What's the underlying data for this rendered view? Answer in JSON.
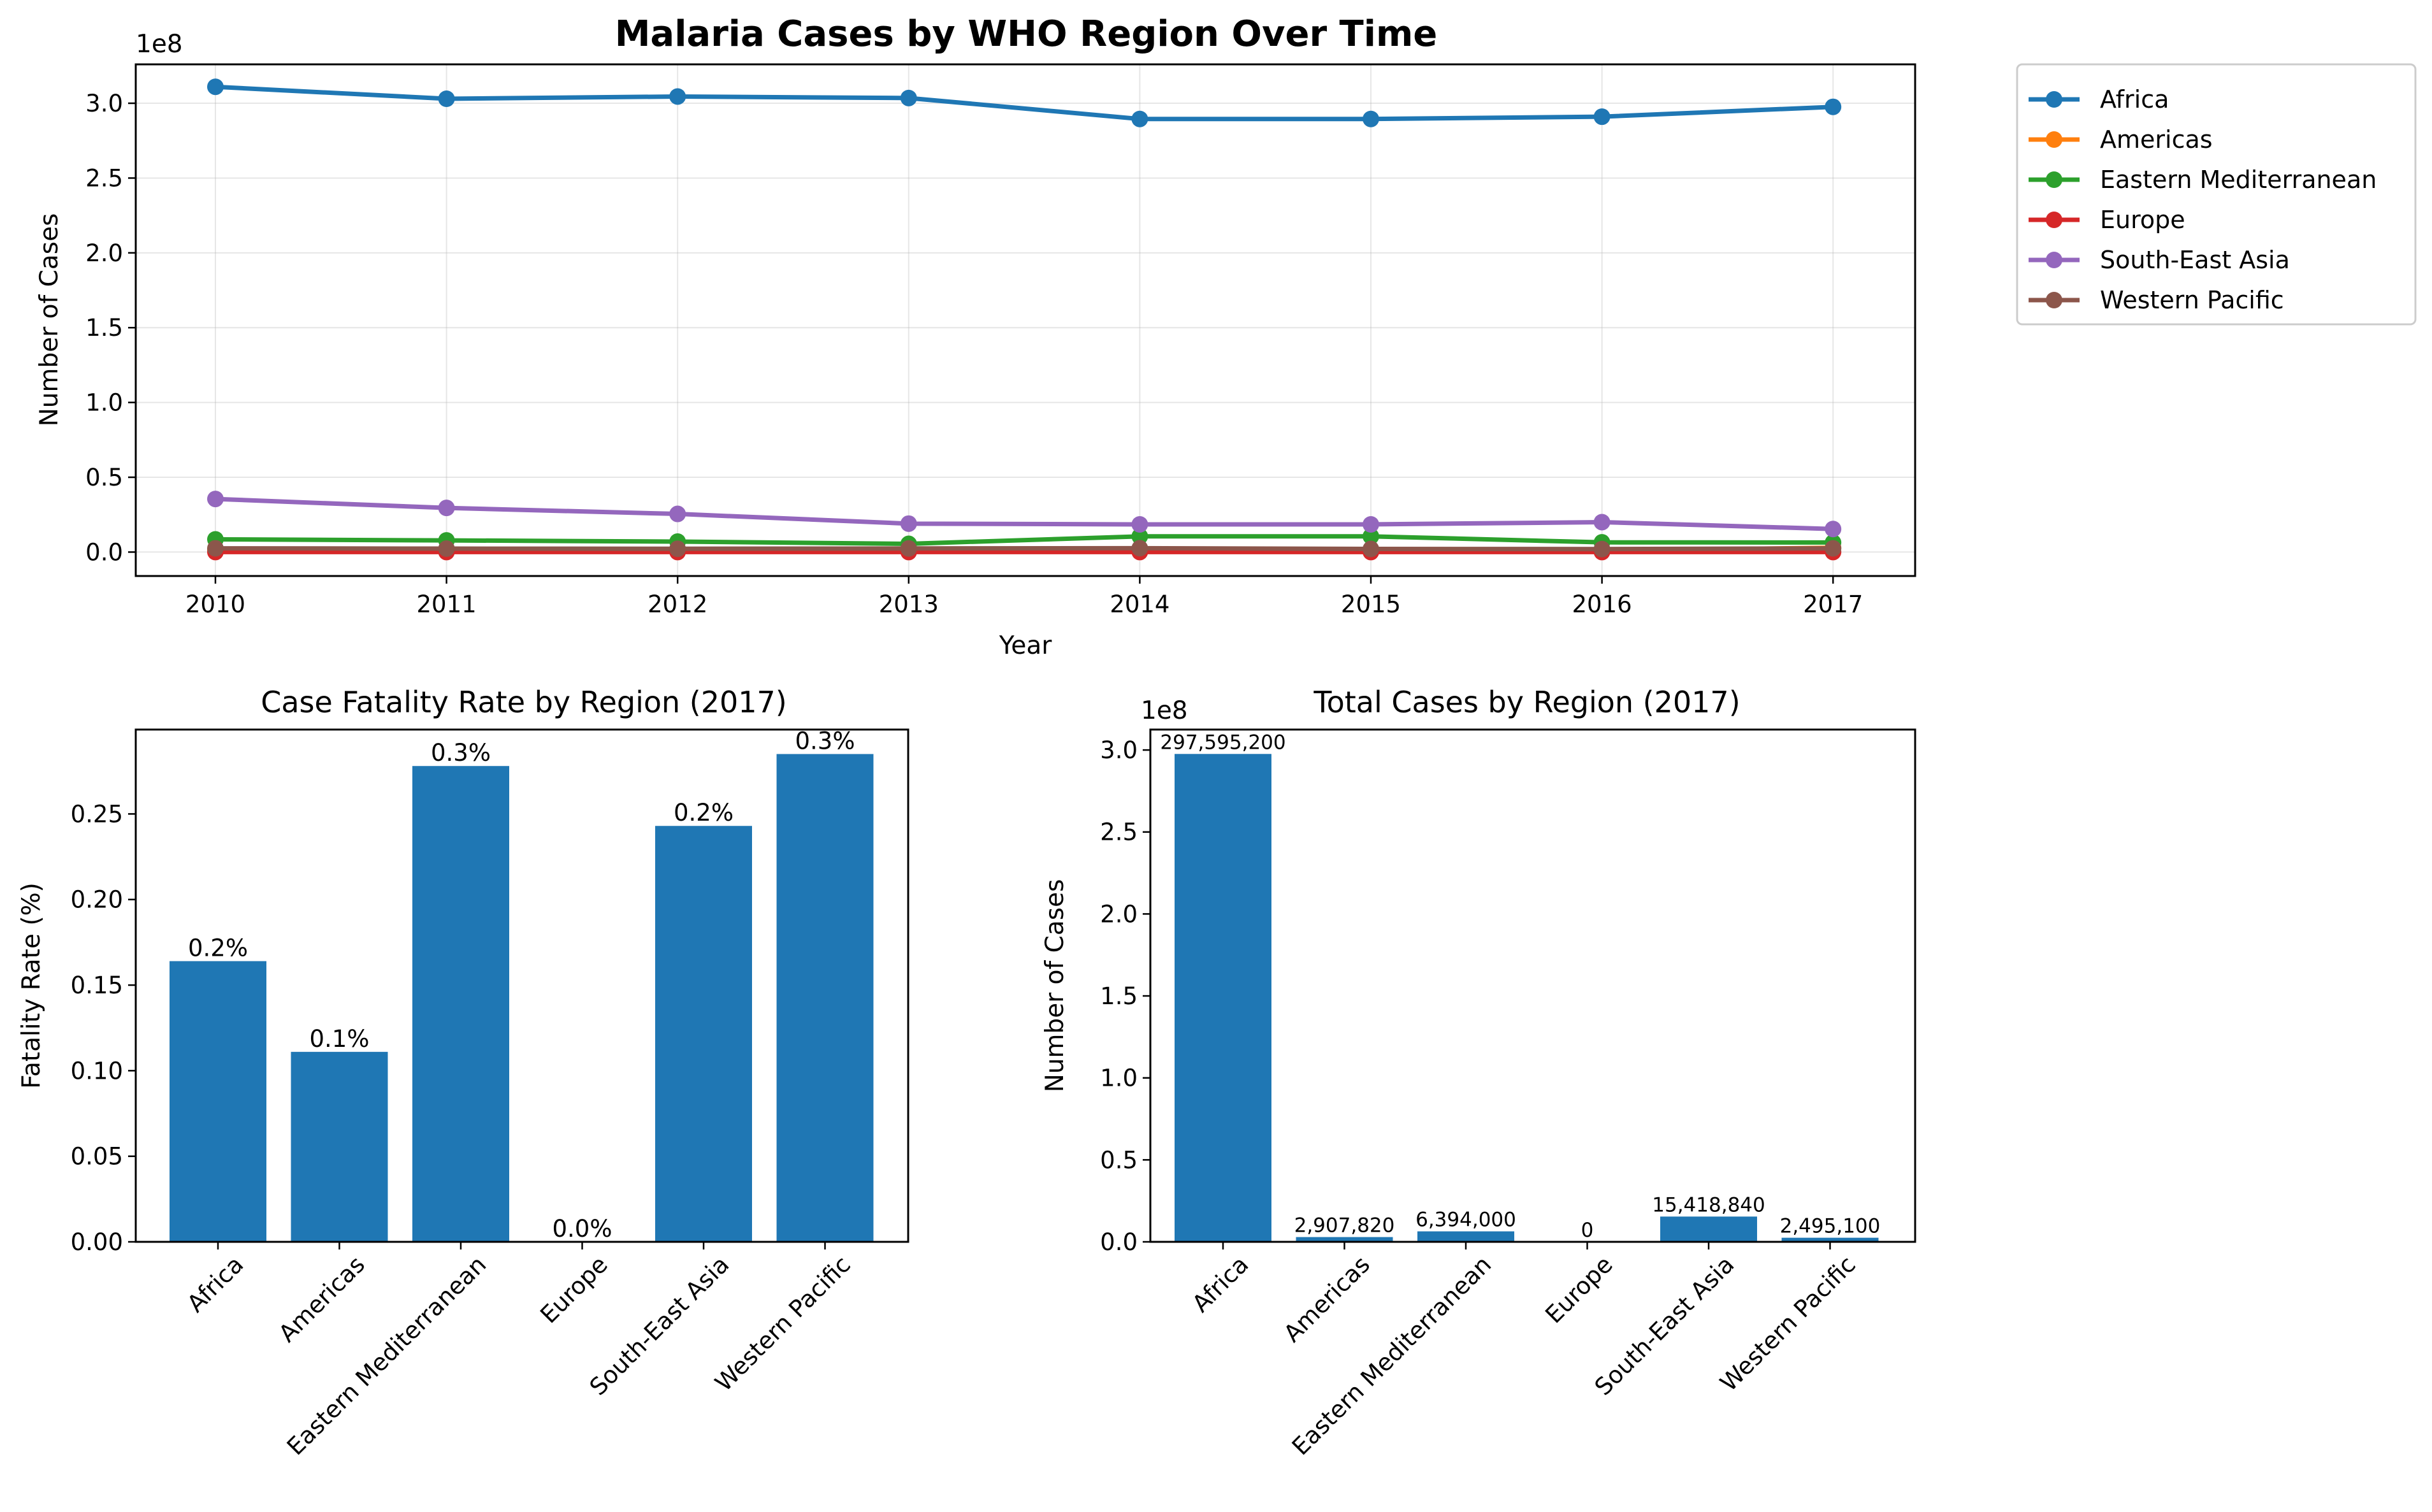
{
  "chart_data": [
    {
      "type": "line",
      "title": "Malaria Cases by WHO Region Over Time",
      "xlabel": "Year",
      "ylabel": "Number of Cases",
      "y_offset_label": "1e8",
      "x": [
        2010,
        2011,
        2012,
        2013,
        2014,
        2015,
        2016,
        2017
      ],
      "x_ticks": [
        "2010",
        "2011",
        "2012",
        "2013",
        "2014",
        "2015",
        "2016",
        "2017"
      ],
      "y_ticks": [
        "0.0",
        "0.5",
        "1.0",
        "1.5",
        "2.0",
        "2.5",
        "3.0"
      ],
      "ylim": [
        -16000000,
        326000000
      ],
      "grid": true,
      "legend_position": "outside-right",
      "series": [
        {
          "name": "Africa",
          "color": "#1f77b4",
          "values": [
            311000000,
            303000000,
            304500000,
            303500000,
            289500000,
            289500000,
            291000000,
            297595200
          ]
        },
        {
          "name": "Americas",
          "color": "#ff7f0e",
          "values": [
            1500000,
            1400000,
            1200000,
            700000,
            650000,
            700000,
            900000,
            2907820
          ]
        },
        {
          "name": "Eastern Mediterranean",
          "color": "#2ca02c",
          "values": [
            8500000,
            7800000,
            7000000,
            5500000,
            10500000,
            10500000,
            6500000,
            6394000
          ]
        },
        {
          "name": "Europe",
          "color": "#d62728",
          "values": [
            200,
            150,
            100,
            50,
            0,
            0,
            0,
            0
          ]
        },
        {
          "name": "South-East Asia",
          "color": "#9467bd",
          "values": [
            35500000,
            29500000,
            25500000,
            19000000,
            18500000,
            18500000,
            20000000,
            15418840
          ]
        },
        {
          "name": "Western Pacific",
          "color": "#8c564b",
          "values": [
            2500000,
            2300000,
            2200000,
            2400000,
            2600000,
            2100000,
            2000000,
            2495100
          ]
        }
      ]
    },
    {
      "type": "bar",
      "title": "Case Fatality Rate by Region (2017)",
      "xlabel": "",
      "ylabel": "Fatality Rate (%)",
      "categories": [
        "Africa",
        "Americas",
        "Eastern Mediterranean",
        "Europe",
        "South-East Asia",
        "Western Pacific"
      ],
      "values": [
        0.164,
        0.111,
        0.278,
        0.0,
        0.243,
        0.285
      ],
      "data_labels": [
        "0.2%",
        "0.1%",
        "0.3%",
        "0.0%",
        "0.2%",
        "0.3%"
      ],
      "y_ticks": [
        "0.00",
        "0.05",
        "0.10",
        "0.15",
        "0.20",
        "0.25"
      ],
      "ylim": [
        0,
        0.2993
      ],
      "color": "#1f77b4"
    },
    {
      "type": "bar",
      "title": "Total Cases by Region (2017)",
      "xlabel": "",
      "ylabel": "Number of Cases",
      "y_offset_label": "1e8",
      "categories": [
        "Africa",
        "Americas",
        "Eastern Mediterranean",
        "Europe",
        "South-East Asia",
        "Western Pacific"
      ],
      "values": [
        297595200,
        2907820,
        6394000,
        0,
        15418840,
        2495100
      ],
      "data_labels": [
        "297,595,200",
        "2,907,820",
        "6,394,000",
        "0",
        "15,418,840",
        "2,495,100"
      ],
      "y_ticks": [
        "0.0",
        "0.5",
        "1.0",
        "1.5",
        "2.0",
        "2.5",
        "3.0"
      ],
      "ylim": [
        0,
        312475000
      ],
      "color": "#1f77b4"
    }
  ]
}
